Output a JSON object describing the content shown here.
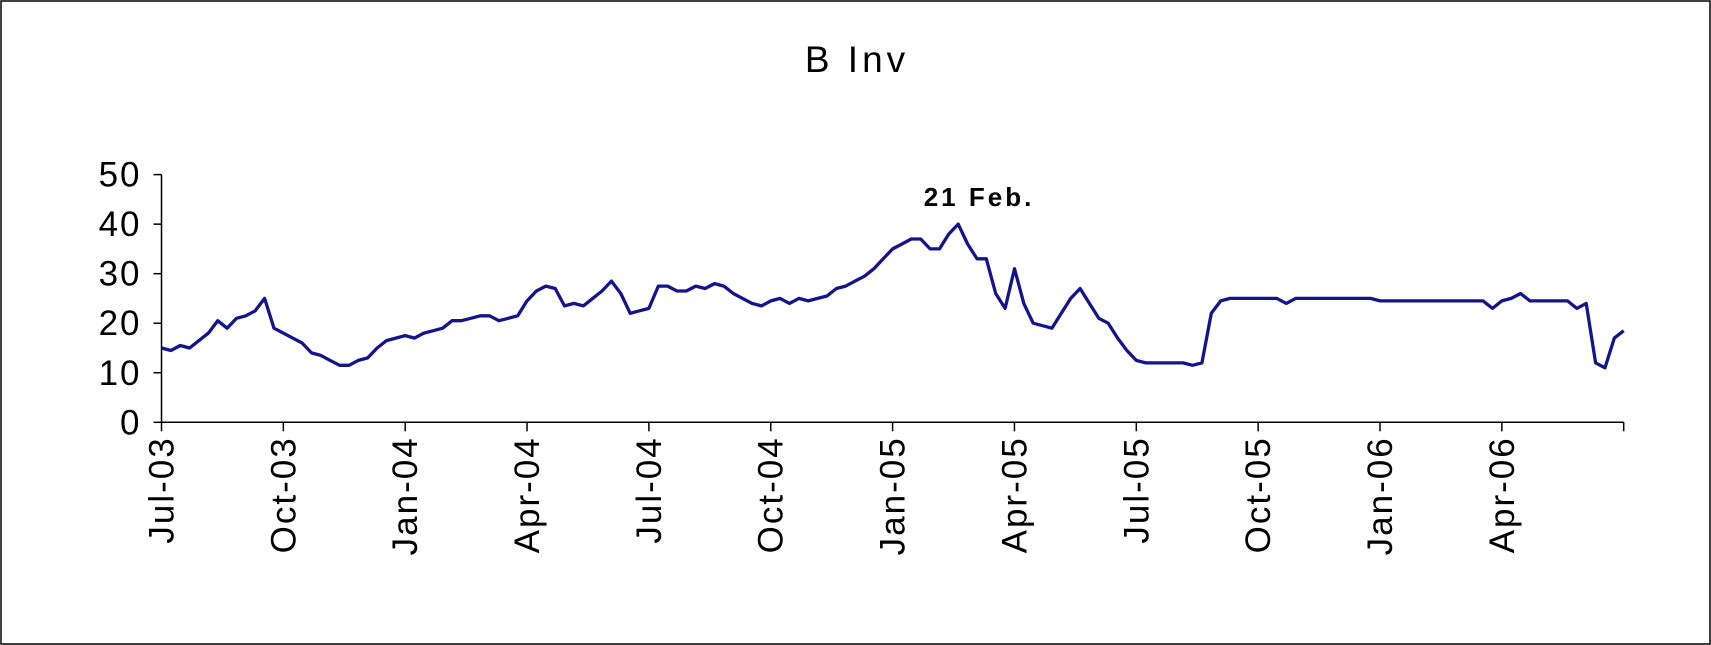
{
  "chart_data": {
    "type": "line",
    "title": "B Inv",
    "annotation": "21 Feb.",
    "categories": [
      "Jul-03",
      null,
      null,
      null,
      null,
      null,
      null,
      null,
      null,
      null,
      null,
      null,
      null,
      "Oct-03",
      null,
      null,
      null,
      null,
      null,
      null,
      null,
      null,
      null,
      null,
      null,
      null,
      "Jan-04",
      null,
      null,
      null,
      null,
      null,
      null,
      null,
      null,
      null,
      null,
      null,
      null,
      "Apr-04",
      null,
      null,
      null,
      null,
      null,
      null,
      null,
      null,
      null,
      null,
      null,
      null,
      "Jul-04",
      null,
      null,
      null,
      null,
      null,
      null,
      null,
      null,
      null,
      null,
      null,
      null,
      "Oct-04",
      null,
      null,
      null,
      null,
      null,
      null,
      null,
      null,
      null,
      null,
      null,
      null,
      "Jan-05",
      null,
      null,
      null,
      null,
      null,
      null,
      null,
      null,
      null,
      null,
      null,
      null,
      "Apr-05",
      null,
      null,
      null,
      null,
      null,
      null,
      null,
      null,
      null,
      null,
      null,
      null,
      "Jul-05",
      null,
      null,
      null,
      null,
      null,
      null,
      null,
      null,
      null,
      null,
      null,
      null,
      "Oct-05",
      null,
      null,
      null,
      null,
      null,
      null,
      null,
      null,
      null,
      null,
      null,
      null,
      "Jan-06",
      null,
      null,
      null,
      null,
      null,
      null,
      null,
      null,
      null,
      null,
      null,
      null,
      "Apr-06",
      null,
      null,
      null,
      null,
      null,
      null,
      null,
      null,
      null,
      null,
      null,
      null,
      null
    ],
    "series": [
      {
        "name": "B Inv",
        "color": "#14148c",
        "values": [
          15,
          14.5,
          15.5,
          15,
          16.5,
          18,
          20.5,
          19,
          21,
          21.5,
          22.5,
          25,
          19,
          18,
          17,
          16,
          14,
          13.5,
          12.5,
          11.5,
          11.5,
          12.5,
          13,
          15,
          16.5,
          17,
          17.5,
          17,
          18,
          18.5,
          19,
          20.5,
          20.5,
          21,
          21.5,
          21.5,
          20.5,
          21,
          21.5,
          24.5,
          26.5,
          27.5,
          27,
          23.5,
          24,
          23.5,
          25,
          26.5,
          28.5,
          26,
          22,
          22.5,
          23,
          27.5,
          27.5,
          26.5,
          26.5,
          27.5,
          27,
          28,
          27.5,
          26,
          25,
          24,
          23.5,
          24.5,
          25,
          24,
          25,
          24.5,
          25,
          25.5,
          27,
          27.5,
          28.5,
          29.5,
          31,
          33,
          35,
          36,
          37,
          37,
          35,
          35,
          38,
          40,
          36,
          33,
          33,
          26,
          23,
          31,
          24,
          20,
          19.5,
          19,
          22,
          25,
          27,
          24,
          21,
          20,
          17,
          14.5,
          12.5,
          12,
          12,
          12,
          12,
          12,
          11.5,
          12,
          22,
          24.5,
          25,
          25,
          25,
          25,
          25,
          25,
          24,
          25,
          25,
          25,
          25,
          25,
          25,
          25,
          25,
          25,
          24.5,
          24.5,
          24.5,
          24.5,
          24.5,
          24.5,
          24.5,
          24.5,
          24.5,
          24.5,
          24.5,
          24.5,
          23,
          24.5,
          25,
          26,
          24.5,
          24.5,
          24.5,
          24.5,
          24.5,
          23,
          24,
          12,
          11,
          17,
          18.5
        ]
      }
    ],
    "xticks": [
      0,
      13,
      26,
      39,
      52,
      65,
      78,
      91,
      104,
      117,
      130,
      143,
      156
    ],
    "ylim": [
      0,
      50
    ],
    "yticks": [
      0,
      10,
      20,
      30,
      40,
      50
    ],
    "grid": false
  }
}
